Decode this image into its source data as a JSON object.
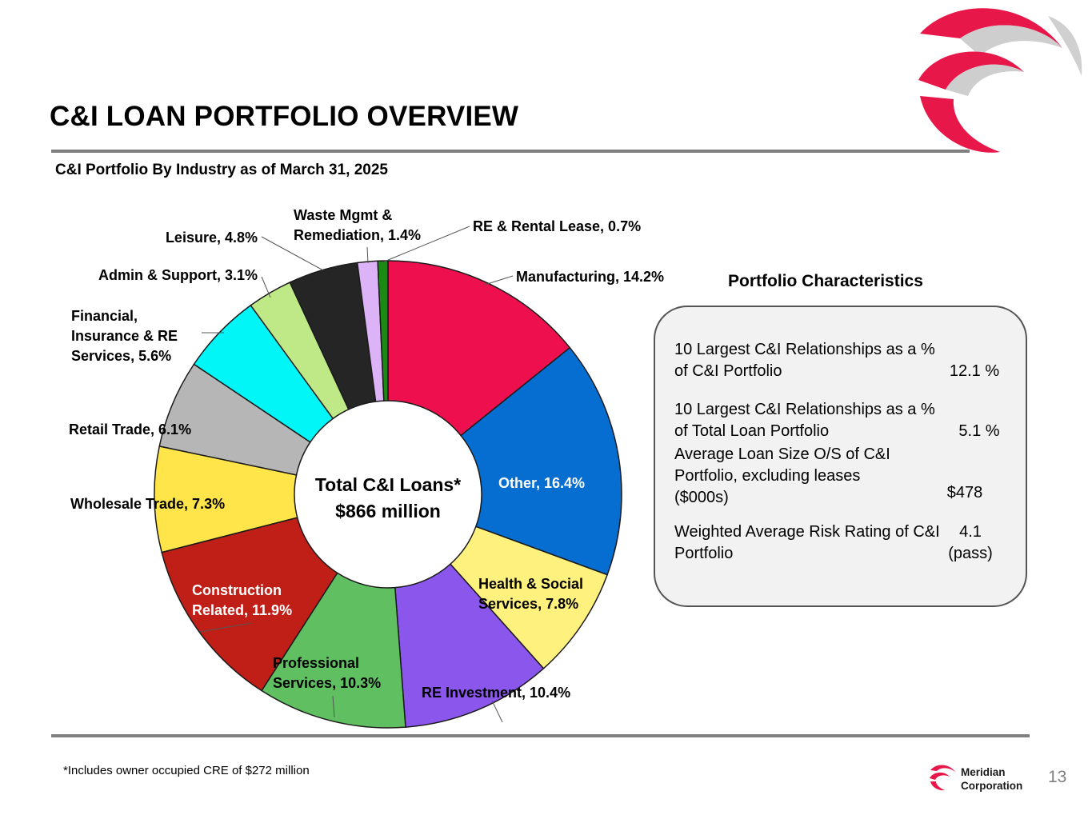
{
  "page": {
    "title": "C&I LOAN PORTFOLIO OVERVIEW",
    "subtitle": "C&I Portfolio By Industry as of March 31, 2025",
    "footnote": "*Includes owner occupied CRE of $272 million",
    "page_number": "13",
    "brand_line1": "Meridian",
    "brand_line2": "Corporation"
  },
  "colors": {
    "accent": "#e8174a",
    "rule": "#7f7f7f",
    "box_bg": "#f2f2f2"
  },
  "chart_data": {
    "type": "pie",
    "style": "donut",
    "title": "C&I Portfolio By Industry as of March 31, 2025",
    "center_label_line1": "Total C&I Loans*",
    "center_label_line2": "$866 million",
    "unit": "%",
    "slices": [
      {
        "name": "Manufacturing",
        "label": "Manufacturing, 14.2%",
        "value": 14.2,
        "color": "#ee104e"
      },
      {
        "name": "Other",
        "label": "Other, 16.4%",
        "value": 16.4,
        "color": "#066dd1"
      },
      {
        "name": "Health & Social Services",
        "label": "Health & Social Services, 7.8%",
        "label_lines": [
          "Health & Social",
          "Services, 7.8%"
        ],
        "value": 7.8,
        "color": "#fff17e"
      },
      {
        "name": "RE Investment",
        "label": "RE Investment, 10.4%",
        "value": 10.4,
        "color": "#8a56ec"
      },
      {
        "name": "Professional Services",
        "label": "Professional Services, 10.3%",
        "label_lines": [
          "Professional",
          "Services, 10.3%"
        ],
        "value": 10.3,
        "color": "#5fbf61"
      },
      {
        "name": "Construction Related",
        "label": "Construction Related, 11.9%",
        "label_lines": [
          "Construction",
          "Related, 11.9%"
        ],
        "value": 11.9,
        "color": "#c01f17"
      },
      {
        "name": "Wholesale Trade",
        "label": "Wholesale Trade, 7.3%",
        "value": 7.3,
        "color": "#ffe44a"
      },
      {
        "name": "Retail Trade",
        "label": "Retail Trade, 6.1%",
        "value": 6.1,
        "color": "#b6b6b6"
      },
      {
        "name": "Financial, Insurance & RE Services",
        "label": "Financial, Insurance & RE Services, 5.6%",
        "label_lines": [
          "Financial,",
          "Insurance & RE",
          "Services, 5.6%"
        ],
        "value": 5.6,
        "color": "#00f6f7"
      },
      {
        "name": "Admin & Support",
        "label": "Admin & Support, 3.1%",
        "value": 3.1,
        "color": "#bfe886"
      },
      {
        "name": "Leisure",
        "label": "Leisure, 4.8%",
        "value": 4.8,
        "color": "#252525"
      },
      {
        "name": "Waste Mgmt & Remediation",
        "label": "Waste Mgmt & Remediation, 1.4%",
        "label_lines": [
          "Waste Mgmt &",
          "Remediation, 1.4%"
        ],
        "value": 1.4,
        "color": "#dcb3f7"
      },
      {
        "name": "RE & Rental Lease",
        "label": "RE & Rental Lease, 0.7%",
        "value": 0.7,
        "color": "#1a8a12"
      }
    ]
  },
  "characteristics": {
    "title": "Portfolio Characteristics",
    "rows": [
      {
        "label": "10 Largest C&I Relationships as a % of C&I Portfolio",
        "value": "12.1 %"
      },
      {
        "label": "10 Largest C&I Relationships as a % of Total Loan Portfolio",
        "value": "5.1 %"
      },
      {
        "label": "Average Loan Size O/S of C&I Portfolio, excluding leases ($000s)",
        "value": "$478"
      },
      {
        "label": "Weighted Average Risk Rating of C&I Portfolio",
        "value": "4.1 (pass)"
      }
    ]
  }
}
